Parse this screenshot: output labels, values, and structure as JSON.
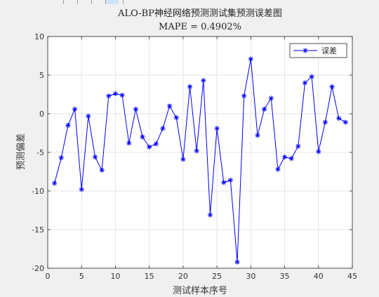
{
  "chart_data": {
    "type": "line",
    "title": "ALO-BP神经网络预测测试集预测误差图",
    "subtitle": "MAPE = 0.4902%",
    "xlabel": "测试样本序号",
    "ylabel": "预测偏差",
    "xlim": [
      0,
      45
    ],
    "ylim": [
      -20,
      10
    ],
    "xticks": [
      0,
      5,
      10,
      15,
      20,
      25,
      30,
      35,
      40,
      45
    ],
    "yticks": [
      -20,
      -15,
      -10,
      -5,
      0,
      5,
      10
    ],
    "grid": true,
    "legend_position": "top-right",
    "series": [
      {
        "name": "误差",
        "color": "#0000ff",
        "marker": "asterisk",
        "x": [
          1,
          2,
          3,
          4,
          5,
          6,
          7,
          8,
          9,
          10,
          11,
          12,
          13,
          14,
          15,
          16,
          17,
          18,
          19,
          20,
          21,
          22,
          23,
          24,
          25,
          26,
          27,
          28,
          29,
          30,
          31,
          32,
          33,
          34,
          35,
          36,
          37,
          38,
          39,
          40,
          41,
          42,
          43,
          44
        ],
        "y": [
          -9.0,
          -5.7,
          -1.5,
          0.6,
          -9.8,
          -0.3,
          -5.6,
          -7.3,
          2.3,
          2.6,
          2.4,
          -3.8,
          0.6,
          -3.0,
          -4.3,
          -3.9,
          -1.9,
          1.0,
          -0.5,
          -5.9,
          3.5,
          -4.8,
          4.3,
          -13.1,
          -1.9,
          -8.9,
          -8.6,
          -19.2,
          2.3,
          7.1,
          -2.8,
          0.6,
          2.0,
          -7.2,
          -5.6,
          -5.8,
          -4.2,
          4.0,
          4.8,
          -4.9,
          -1.1,
          3.5,
          -0.6,
          -1.1
        ]
      }
    ]
  }
}
